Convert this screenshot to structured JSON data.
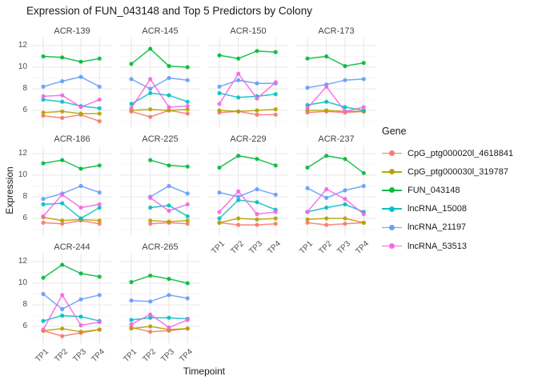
{
  "title": "Expression of FUN_043148 and Top 5 Predictors by Colony",
  "axes": {
    "x_title": "Timepoint",
    "y_title": "Expression"
  },
  "legend": {
    "title": "Gene"
  },
  "chart_data": {
    "type": "line",
    "x": [
      "TP1",
      "TP2",
      "TP3",
      "TP4"
    ],
    "ylim": [
      4.4,
      12.7
    ],
    "y_ticks": [
      12,
      10,
      8,
      6
    ],
    "grid": true,
    "legend_position": "right",
    "series": [
      {
        "name": "CpG_ptg000020l_4618841",
        "color": "#F8766D"
      },
      {
        "name": "CpG_ptg000030l_319787",
        "color": "#B79F00"
      },
      {
        "name": "FUN_043148",
        "color": "#00BA38"
      },
      {
        "name": "lncRNA_15008",
        "color": "#00BFC4"
      },
      {
        "name": "lncRNA_21197",
        "color": "#619CFF"
      },
      {
        "name": "lncRNA_53513",
        "color": "#F564E3"
      }
    ],
    "facets": [
      {
        "colony": "ACR-139",
        "values": {
          "CpG_ptg000020l_4618841": [
            5.5,
            5.3,
            5.6,
            5.0
          ],
          "CpG_ptg000030l_319787": [
            5.8,
            5.9,
            5.7,
            5.7
          ],
          "FUN_043148": [
            11.0,
            10.9,
            10.5,
            10.8
          ],
          "lncRNA_15008": [
            7.0,
            6.8,
            6.4,
            6.2
          ],
          "lncRNA_21197": [
            8.2,
            8.7,
            9.1,
            8.2
          ],
          "lncRNA_53513": [
            7.3,
            7.4,
            6.3,
            7.0
          ]
        }
      },
      {
        "colony": "ACR-145",
        "values": {
          "CpG_ptg000020l_4618841": [
            5.9,
            5.4,
            6.0,
            5.7
          ],
          "CpG_ptg000030l_319787": [
            6.0,
            6.1,
            6.0,
            6.1
          ],
          "FUN_043148": [
            10.3,
            11.7,
            10.1,
            10.0
          ],
          "lncRNA_15008": [
            6.6,
            7.6,
            7.4,
            6.8
          ],
          "lncRNA_21197": [
            8.9,
            8.0,
            9.0,
            8.8
          ],
          "lncRNA_53513": [
            6.2,
            8.9,
            6.3,
            6.4
          ]
        }
      },
      {
        "colony": "ACR-150",
        "values": {
          "CpG_ptg000020l_4618841": [
            5.8,
            5.9,
            5.6,
            5.6
          ],
          "CpG_ptg000030l_319787": [
            6.0,
            5.9,
            6.0,
            6.1
          ],
          "FUN_043148": [
            11.1,
            10.8,
            11.5,
            11.4
          ],
          "lncRNA_15008": [
            7.6,
            7.2,
            7.3,
            7.5
          ],
          "lncRNA_21197": [
            8.2,
            8.8,
            8.5,
            8.5
          ],
          "lncRNA_53513": [
            6.6,
            9.4,
            7.1,
            8.6
          ]
        }
      },
      {
        "colony": "ACR-173",
        "values": {
          "CpG_ptg000020l_4618841": [
            5.8,
            5.9,
            5.8,
            5.9
          ],
          "CpG_ptg000030l_319787": [
            6.0,
            6.0,
            5.9,
            5.9
          ],
          "FUN_043148": [
            10.8,
            11.0,
            10.1,
            10.4
          ],
          "lncRNA_15008": [
            6.5,
            6.8,
            6.3,
            6.0
          ],
          "lncRNA_21197": [
            8.1,
            8.4,
            8.8,
            8.9
          ],
          "lncRNA_53513": [
            6.2,
            8.2,
            5.9,
            6.3
          ]
        }
      },
      {
        "colony": "ACR-186",
        "values": {
          "CpG_ptg000020l_4618841": [
            5.6,
            5.5,
            5.8,
            5.5
          ],
          "CpG_ptg000030l_319787": [
            6.1,
            5.8,
            5.9,
            5.8
          ],
          "FUN_043148": [
            11.1,
            11.4,
            10.6,
            10.9
          ],
          "lncRNA_15008": [
            7.3,
            7.4,
            6.0,
            7.0
          ],
          "lncRNA_21197": [
            7.8,
            8.3,
            9.0,
            8.4
          ],
          "lncRNA_53513": [
            6.2,
            8.2,
            7.0,
            7.3
          ]
        }
      },
      {
        "colony": "ACR-225",
        "values": {
          "CpG_ptg000020l_4618841": [
            null,
            5.5,
            5.6,
            5.5
          ],
          "CpG_ptg000030l_319787": [
            null,
            5.8,
            5.7,
            5.8
          ],
          "FUN_043148": [
            null,
            11.4,
            10.9,
            10.8
          ],
          "lncRNA_15008": [
            null,
            7.0,
            7.2,
            6.2
          ],
          "lncRNA_21197": [
            null,
            8.0,
            9.0,
            8.3
          ],
          "lncRNA_53513": [
            null,
            7.9,
            6.7,
            7.3
          ]
        }
      },
      {
        "colony": "ACR-229",
        "values": {
          "CpG_ptg000020l_4618841": [
            5.6,
            5.4,
            5.4,
            5.5
          ],
          "CpG_ptg000030l_319787": [
            5.6,
            6.0,
            5.9,
            6.0
          ],
          "FUN_043148": [
            10.7,
            11.8,
            11.5,
            10.9
          ],
          "lncRNA_15008": [
            6.0,
            7.7,
            7.5,
            6.8
          ],
          "lncRNA_21197": [
            8.4,
            8.0,
            8.7,
            8.2
          ],
          "lncRNA_53513": [
            6.6,
            8.5,
            6.4,
            6.6
          ]
        }
      },
      {
        "colony": "ACR-237",
        "values": {
          "CpG_ptg000020l_4618841": [
            5.6,
            5.4,
            5.5,
            5.6
          ],
          "CpG_ptg000030l_319787": [
            5.9,
            6.0,
            6.0,
            5.6
          ],
          "FUN_043148": [
            10.7,
            11.8,
            11.5,
            10.2
          ],
          "lncRNA_15008": [
            6.6,
            7.0,
            7.3,
            6.6
          ],
          "lncRNA_21197": [
            8.8,
            7.9,
            8.6,
            9.0
          ],
          "lncRNA_53513": [
            6.6,
            8.7,
            7.8,
            6.4
          ]
        }
      },
      {
        "colony": "ACR-244",
        "values": {
          "CpG_ptg000020l_4618841": [
            5.6,
            5.1,
            5.4,
            5.7
          ],
          "CpG_ptg000030l_319787": [
            5.6,
            5.8,
            5.5,
            5.7
          ],
          "FUN_043148": [
            10.5,
            11.7,
            10.9,
            10.6
          ],
          "lncRNA_15008": [
            6.5,
            7.0,
            6.9,
            6.5
          ],
          "lncRNA_21197": [
            9.0,
            7.6,
            8.5,
            8.9
          ],
          "lncRNA_53513": [
            5.7,
            8.9,
            6.1,
            6.4
          ]
        }
      },
      {
        "colony": "ACR-265",
        "values": {
          "CpG_ptg000020l_4618841": [
            5.9,
            5.5,
            5.6,
            5.8
          ],
          "CpG_ptg000030l_319787": [
            5.8,
            6.0,
            5.7,
            5.8
          ],
          "FUN_043148": [
            10.1,
            10.7,
            10.4,
            10.0
          ],
          "lncRNA_15008": [
            6.6,
            6.8,
            6.8,
            6.7
          ],
          "lncRNA_21197": [
            8.4,
            8.3,
            8.9,
            8.6
          ],
          "lncRNA_53513": [
            6.2,
            7.1,
            5.9,
            6.6
          ]
        }
      }
    ]
  }
}
